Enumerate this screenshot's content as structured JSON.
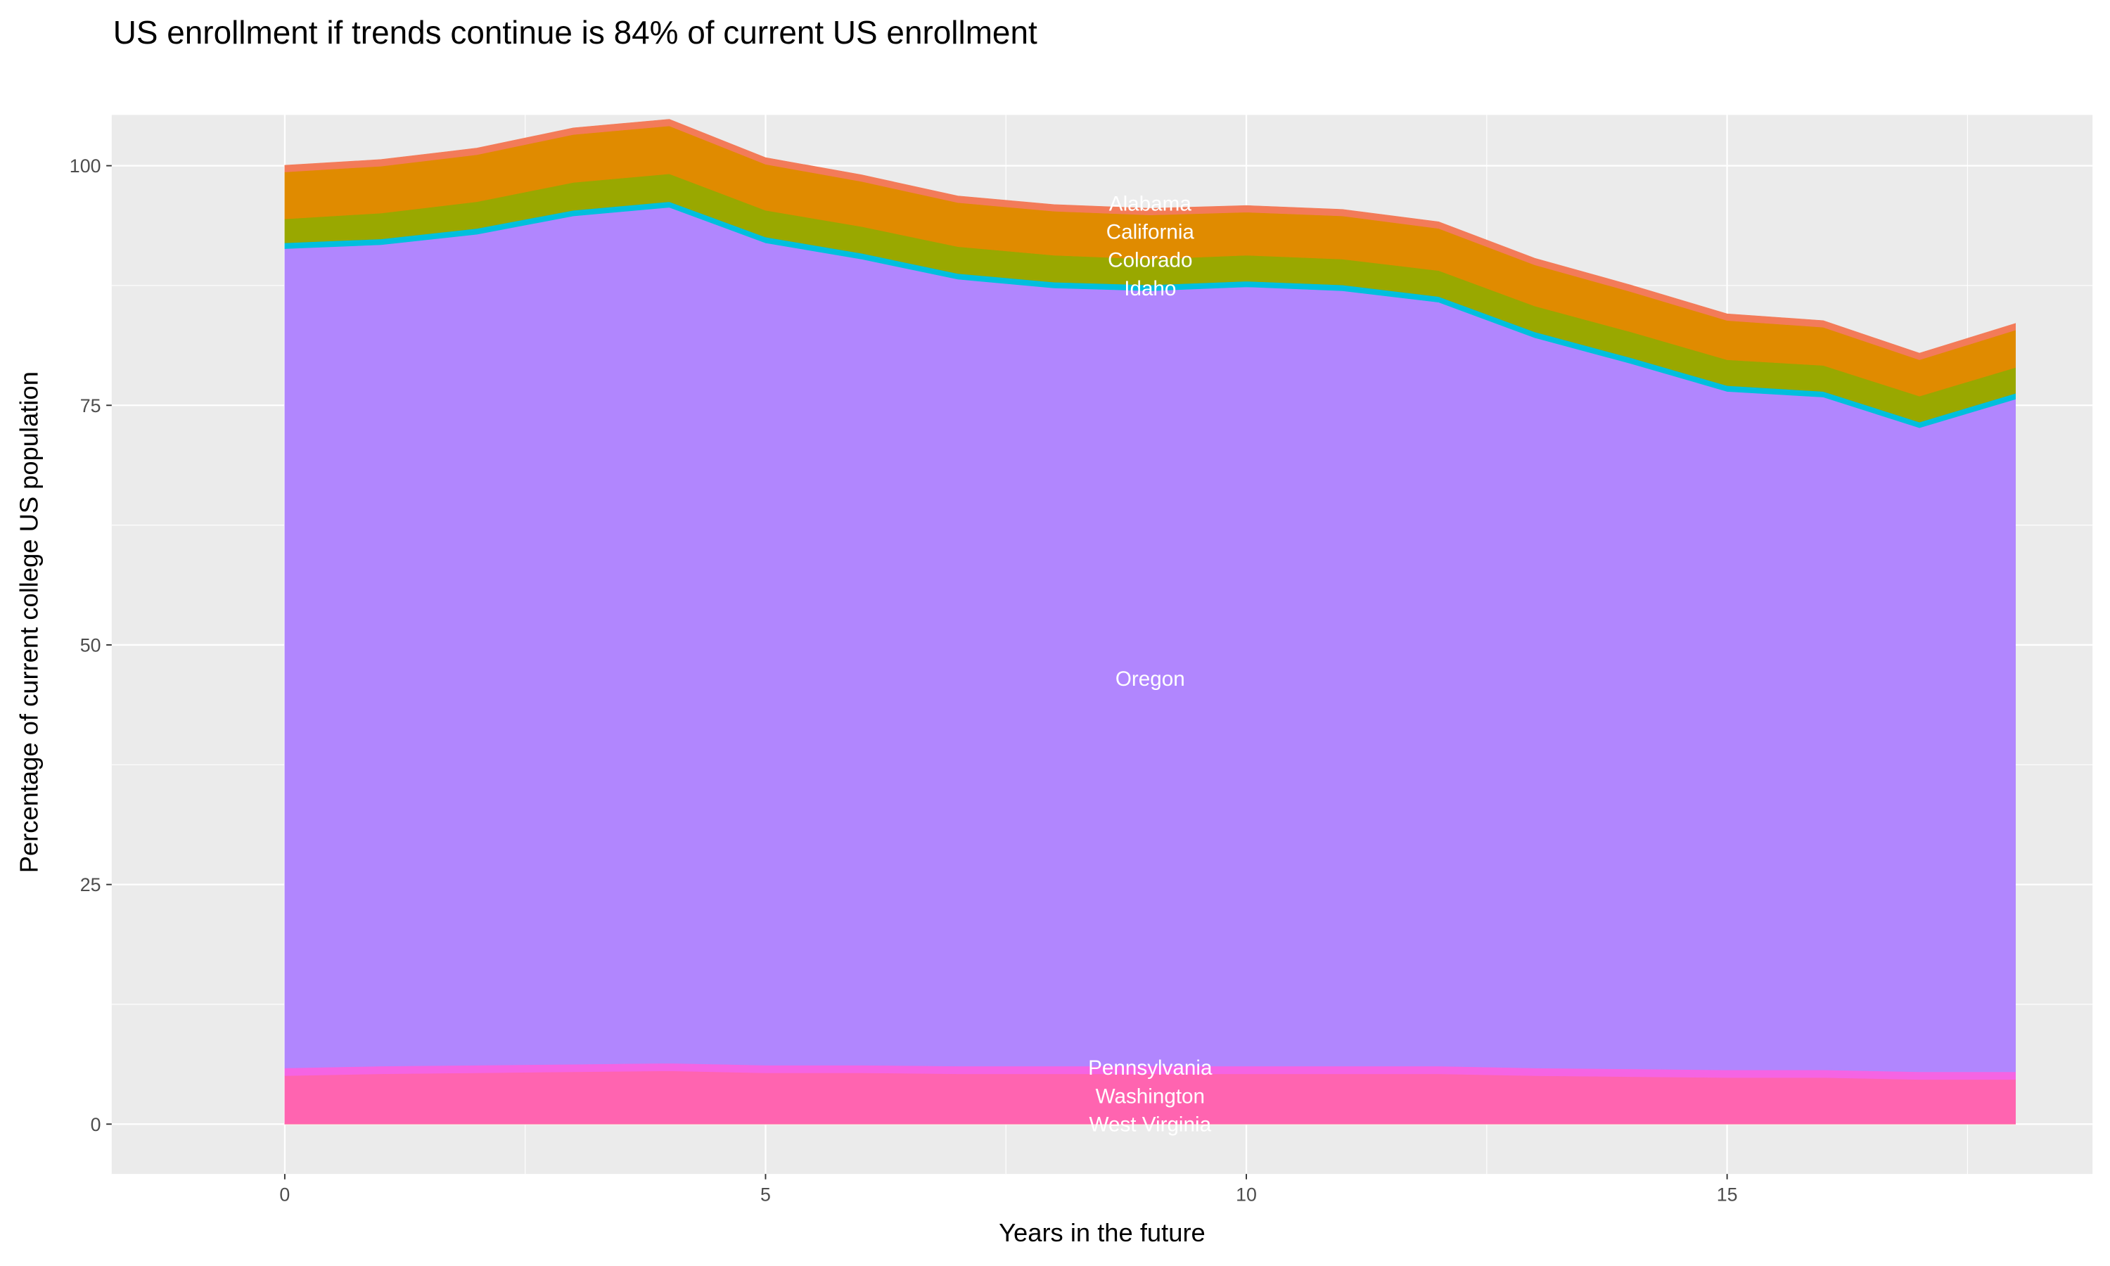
{
  "chart_data": {
    "type": "area",
    "stacked": true,
    "title": "US enrollment if trends continue is 84% of current US enrollment",
    "xlabel": "Years in the future",
    "ylabel": "Percentage of current college US population",
    "xlim": [
      -1.8,
      18.8
    ],
    "ylim": [
      -5.2,
      105.3
    ],
    "x_ticks": [
      "0",
      "5",
      "10",
      "15"
    ],
    "y_ticks": [
      "0",
      "25",
      "50",
      "75",
      "100"
    ],
    "grid": true,
    "legend": "none",
    "label_at_x": 9,
    "x": [
      0,
      1,
      2,
      3,
      4,
      5,
      6,
      7,
      8,
      9,
      10,
      11,
      12,
      13,
      14,
      15,
      16,
      17,
      18
    ],
    "series": [
      {
        "name": "West Virginia",
        "color": "#FF6C91",
        "values": [
          0.05,
          0.05,
          0.05,
          0.05,
          0.05,
          0.05,
          0.05,
          0.05,
          0.05,
          0.05,
          0.05,
          0.05,
          0.05,
          0.05,
          0.05,
          0.05,
          0.05,
          0.05,
          0.05
        ]
      },
      {
        "name": "Washington",
        "color": "#FF64B0",
        "values": [
          5.0,
          5.2,
          5.3,
          5.4,
          5.5,
          5.3,
          5.3,
          5.2,
          5.2,
          5.2,
          5.2,
          5.2,
          5.2,
          5.0,
          4.9,
          4.8,
          4.8,
          4.6,
          4.6
        ]
      },
      {
        "name": "Pennsylvania",
        "color": "#F564E3",
        "values": [
          0.8,
          0.8,
          0.8,
          0.8,
          0.8,
          0.8,
          0.8,
          0.8,
          0.8,
          0.8,
          0.8,
          0.8,
          0.8,
          0.8,
          0.8,
          0.8,
          0.8,
          0.8,
          0.8
        ]
      },
      {
        "name": "Oregon",
        "color": "#B186FE",
        "values": [
          85.5,
          85.7,
          86.7,
          88.5,
          89.3,
          85.8,
          84.1,
          82.1,
          81.2,
          80.9,
          81.3,
          80.9,
          79.7,
          76.2,
          73.6,
          70.8,
          70.2,
          67.2,
          70.2
        ]
      },
      {
        "name": "Idaho",
        "color": "#00BFDD",
        "values": [
          0.6,
          0.6,
          0.6,
          0.6,
          0.6,
          0.6,
          0.6,
          0.6,
          0.6,
          0.6,
          0.6,
          0.6,
          0.6,
          0.6,
          0.6,
          0.6,
          0.6,
          0.6,
          0.6
        ]
      },
      {
        "name": "Colorado",
        "color": "#99A800",
        "values": [
          2.5,
          2.7,
          2.8,
          2.9,
          2.9,
          2.8,
          2.8,
          2.8,
          2.8,
          2.7,
          2.7,
          2.7,
          2.7,
          2.7,
          2.7,
          2.7,
          2.7,
          2.7,
          2.7
        ]
      },
      {
        "name": "California",
        "color": "#E08B00",
        "values": [
          4.9,
          4.9,
          4.9,
          5.0,
          5.0,
          4.8,
          4.7,
          4.6,
          4.6,
          4.6,
          4.5,
          4.5,
          4.4,
          4.3,
          4.2,
          4.1,
          4.0,
          3.8,
          3.9
        ]
      },
      {
        "name": "Alabama",
        "color": "#F37B59",
        "values": [
          0.7,
          0.7,
          0.7,
          0.7,
          0.7,
          0.7,
          0.7,
          0.7,
          0.7,
          0.7,
          0.7,
          0.7,
          0.7,
          0.7,
          0.7,
          0.7,
          0.7,
          0.7,
          0.7
        ]
      }
    ],
    "colors": {
      "panel": "#EBEBEB",
      "grid": "#FFFFFF",
      "label_text": "#FFFFFF"
    }
  }
}
